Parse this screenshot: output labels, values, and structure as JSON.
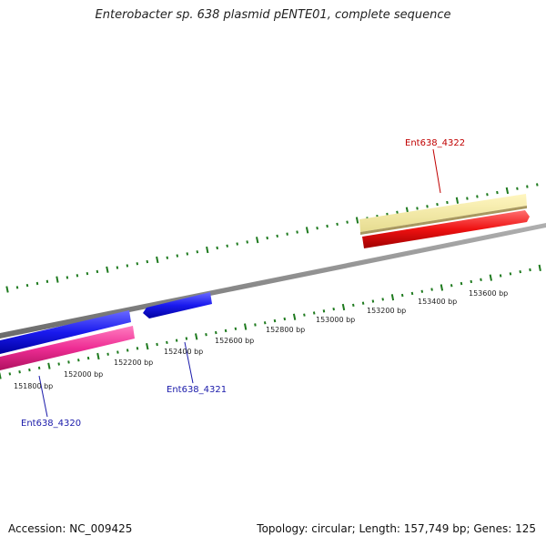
{
  "title": "Enterobacter sp. 638 plasmid pENTE01, complete sequence",
  "footer": {
    "accession": "Accession: NC_009425",
    "topology": "Topology: circular; Length: 157,749 bp; Genes: 125"
  },
  "colors": {
    "backbone": "#888888",
    "tick": "#1e7a1e",
    "forward_gene": "#1a1aee",
    "reverse_gene": "#ee2d94",
    "highlight_gene": "#ee1111",
    "highlight_band": "#f0e8a0",
    "label_blue": "#1a1aaa",
    "label_red": "#c00000"
  },
  "scale": {
    "labels": [
      "151800 bp",
      "152000 bp",
      "152200 bp",
      "152400 bp",
      "152600 bp",
      "152800 bp",
      "153000 bp",
      "153200 bp",
      "153400 bp",
      "153600 bp"
    ]
  },
  "genes": [
    {
      "id": "Ent638_4320",
      "label": "Ent638_4320",
      "color": "label_blue"
    },
    {
      "id": "Ent638_4321",
      "label": "Ent638_4321",
      "color": "label_blue"
    },
    {
      "id": "Ent638_4322",
      "label": "Ent638_4322",
      "color": "label_red"
    }
  ]
}
